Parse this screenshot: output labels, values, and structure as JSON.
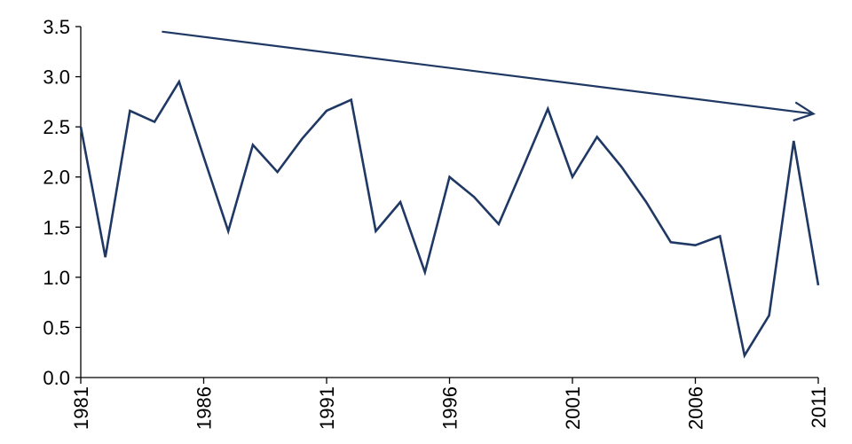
{
  "chart_data": {
    "type": "line",
    "title": "",
    "xlabel": "",
    "ylabel": "",
    "ylim": [
      0,
      3.5
    ],
    "xlim": [
      1981,
      2011
    ],
    "yticks": [
      "0.0",
      "0.5",
      "1.0",
      "1.5",
      "2.0",
      "2.5",
      "3.0",
      "3.5"
    ],
    "xticks": [
      "1981",
      "1986",
      "1991",
      "1996",
      "2001",
      "2006",
      "2011"
    ],
    "grid": false,
    "legend": "none",
    "series": [
      {
        "color": "#1f3864",
        "x": [
          1981,
          1982,
          1983,
          1984,
          1985,
          1986,
          1987,
          1988,
          1989,
          1990,
          1991,
          1992,
          1993,
          1994,
          1995,
          1996,
          1997,
          1998,
          1999,
          2000,
          2001,
          2002,
          2003,
          2004,
          2005,
          2006,
          2007,
          2008,
          2009,
          2010,
          2011
        ],
        "values": [
          2.5,
          1.2,
          2.66,
          2.55,
          2.95,
          2.2,
          1.46,
          2.32,
          2.05,
          2.38,
          2.66,
          2.77,
          1.46,
          1.75,
          1.05,
          2.0,
          1.8,
          1.53,
          2.1,
          2.68,
          2.0,
          2.4,
          2.1,
          1.75,
          1.35,
          1.32,
          1.41,
          0.22,
          0.62,
          2.36,
          0.92
        ]
      }
    ],
    "annotations": [
      {
        "type": "trend-arrow",
        "color": "#1f3864",
        "from": {
          "x": 1984.3,
          "y": 3.45
        },
        "to": {
          "x": 2010.8,
          "y": 2.63
        }
      }
    ]
  }
}
